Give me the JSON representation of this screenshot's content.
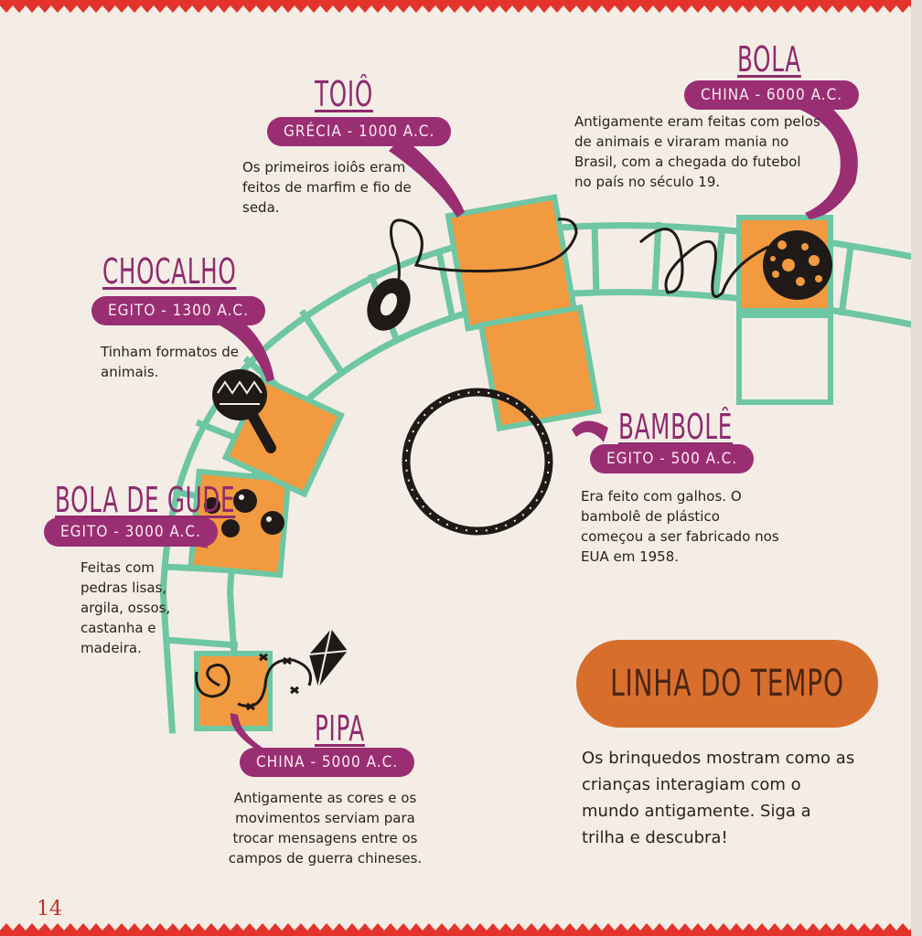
{
  "page_number": "14",
  "header": {
    "title": "LINHA DO TEMPO"
  },
  "intro": "Os brinquedos mostram como as crianças interagiam com o mundo antigamente. Siga a trilha e descubra!",
  "items": [
    {
      "title": "TOIÔ",
      "tag": "GRÉCIA - 1000 A.C.",
      "text": "Os primeiros ioiôs eram feitos de marfim e fio de seda."
    },
    {
      "title": "BOLA",
      "tag": "CHINA - 6000 A.C.",
      "text": "Antigamente eram feitas com pelos de animais e viraram mania no Brasil, com a chegada do futebol no país no século 19."
    },
    {
      "title": "CHOCALHO",
      "tag": "EGITO - 1300 A.C.",
      "text": "Tinham formatos de animais."
    },
    {
      "title": "BAMBOLÊ",
      "tag": "EGITO - 500 A.C.",
      "text": "Era feito com galhos. O bambolê de plástico começou a ser fabricado nos EUA em 1958."
    },
    {
      "title": "BOLA DE GUDE",
      "tag": "EGITO - 3000 A.C.",
      "text": "Feitas com pedras lisas, argila, ossos, castanha e madeira."
    },
    {
      "title": "PIPA",
      "tag": "CHINA - 5000 A.C.",
      "text": "Antigamente as cores e os movimentos serviam para trocar mensagens entre os campos de guerra chineses."
    }
  ],
  "colors": {
    "orange": "#f29a3f",
    "track": "#6ec6a3",
    "purple": "#9a2e73",
    "red": "#e3332b"
  },
  "icons": [
    "yoyo-icon",
    "ball-icon",
    "rattle-icon",
    "hoop-icon",
    "marbles-icon",
    "kite-icon"
  ]
}
